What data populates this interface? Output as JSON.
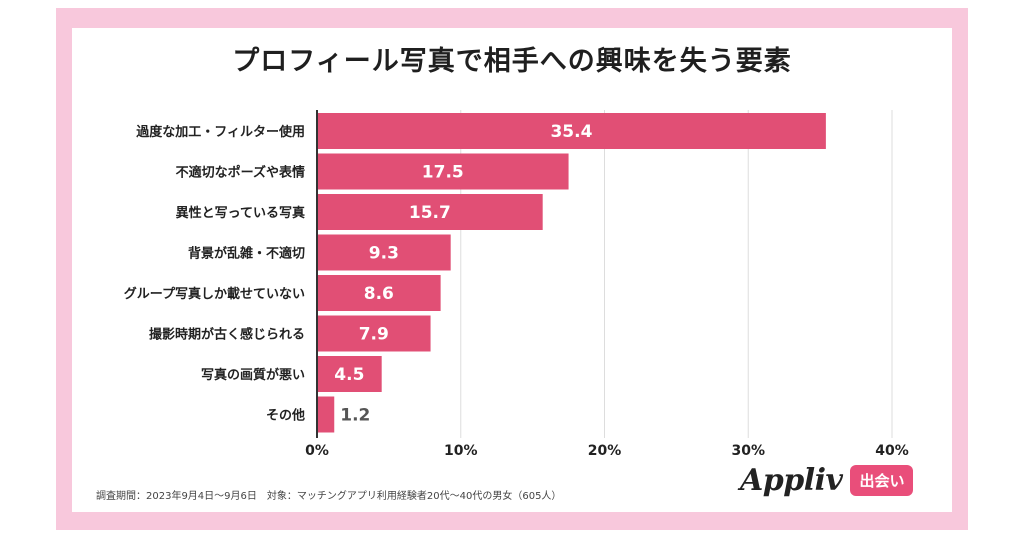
{
  "chart_data": {
    "type": "bar",
    "orientation": "horizontal",
    "title": "プロフィール写真で相手への興味を失う要素",
    "categories": [
      "過度な加工・フィルター使用",
      "不適切なポーズや表情",
      "異性と写っている写真",
      "背景が乱雑・不適切",
      "グループ写真しか載せていない",
      "撮影時期が古く感じられる",
      "写真の画質が悪い",
      "その他"
    ],
    "values": [
      35.4,
      17.5,
      15.7,
      9.3,
      8.6,
      7.9,
      4.5,
      1.2
    ],
    "value_labels": [
      "35.4",
      "17.5",
      "15.7",
      "9.3",
      "8.6",
      "7.9",
      "4.5",
      "1.2"
    ],
    "xlim": [
      0,
      40
    ],
    "xticks": [
      0,
      10,
      20,
      30,
      40
    ],
    "xtick_labels": [
      "0%",
      "10%",
      "20%",
      "30%",
      "40%"
    ],
    "xlabel": "",
    "ylabel": "",
    "grid": true,
    "colors": {
      "bar": "#e14f75",
      "frame": "#f8c8dc",
      "label_inside": "#ffffff",
      "label_outside": "#555555"
    }
  },
  "footnote": "調査期間：2023年9月4日〜9月6日　対象：マッチングアプリ利用経験者20代〜40代の男女（605人）",
  "logo": {
    "name": "Appliv",
    "badge": "出会い"
  }
}
